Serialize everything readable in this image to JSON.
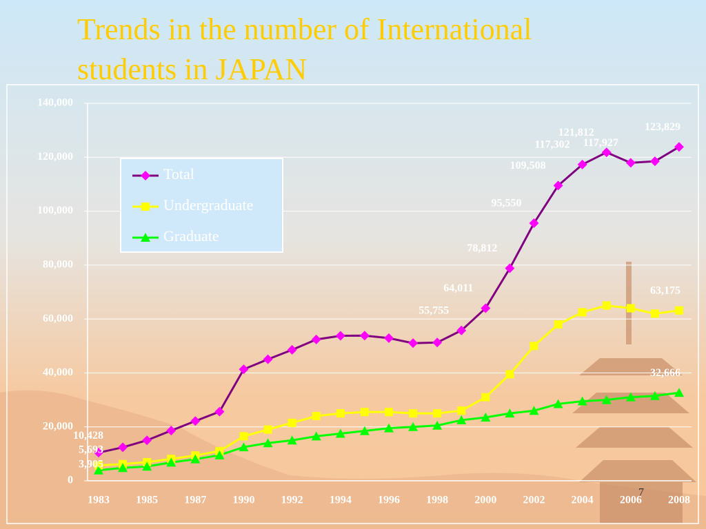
{
  "chart_data": {
    "type": "line",
    "title": "Trends in the number of International students in JAPAN",
    "page_number": "7",
    "categories": [
      "1983",
      null,
      "1985",
      null,
      "1987",
      null,
      "1990",
      null,
      "1992",
      null,
      "1994",
      null,
      "1996",
      null,
      "1998",
      null,
      "2000",
      null,
      "2002",
      null,
      "2004",
      null,
      "2006",
      null,
      "2008"
    ],
    "series": [
      {
        "name": "Total",
        "color": "#800080",
        "marker_color": "#ff00ff",
        "marker": "diamond",
        "values": [
          10428,
          12410,
          15009,
          18625,
          22154,
          25643,
          41347,
          45066,
          48561,
          52405,
          53787,
          53847,
          52921,
          51047,
          51298,
          55755,
          64011,
          78812,
          95550,
          109508,
          117302,
          121812,
          117927,
          118498,
          123829
        ],
        "value_labels": [
          "10,428",
          null,
          null,
          null,
          null,
          null,
          null,
          null,
          null,
          null,
          null,
          null,
          null,
          null,
          null,
          "55,755",
          "64,011",
          "78,812",
          "95,550",
          "109,508",
          "117,302",
          "121,812",
          "117,927",
          null,
          "123,829"
        ]
      },
      {
        "name": "Undergraduate",
        "color": "#ffff00",
        "marker_color": "#ffff00",
        "marker": "square",
        "values": [
          5693,
          6200,
          6900,
          8100,
          9400,
          11000,
          16500,
          19000,
          21500,
          24000,
          25000,
          25500,
          25500,
          25000,
          25000,
          26000,
          31000,
          39500,
          50000,
          58000,
          62500,
          65000,
          64000,
          62000,
          63175
        ],
        "value_labels": [
          "5,693",
          null,
          null,
          null,
          null,
          null,
          null,
          null,
          null,
          null,
          null,
          null,
          null,
          null,
          null,
          null,
          null,
          null,
          null,
          null,
          null,
          null,
          null,
          null,
          "63,175"
        ]
      },
      {
        "name": "Graduate",
        "color": "#00ff00",
        "marker_color": "#00ff00",
        "marker": "triangle",
        "values": [
          3905,
          4800,
          5300,
          6800,
          8000,
          9500,
          12500,
          14000,
          15000,
          16500,
          17500,
          18500,
          19500,
          20000,
          20500,
          22500,
          23500,
          25000,
          26000,
          28500,
          29500,
          30000,
          31000,
          31500,
          32666
        ],
        "value_labels": [
          "3,905",
          null,
          null,
          null,
          null,
          null,
          null,
          null,
          null,
          null,
          null,
          null,
          null,
          null,
          null,
          null,
          null,
          null,
          null,
          null,
          null,
          null,
          null,
          null,
          "32,666"
        ]
      }
    ],
    "ylim": [
      0,
      140000
    ],
    "yticks": [
      0,
      {
        "value": 20000,
        "label": "20,000"
      },
      {
        "value": 40000,
        "label": "40,000"
      },
      {
        "value": 60000,
        "label": "60,000"
      },
      {
        "value": 80000,
        "label": "80,000"
      },
      {
        "value": 100000,
        "label": "100,000"
      },
      {
        "value": 120000,
        "label": "120,000"
      },
      {
        "value": 140000,
        "label": "140,000"
      }
    ],
    "grid": true,
    "legend": "upper left"
  }
}
